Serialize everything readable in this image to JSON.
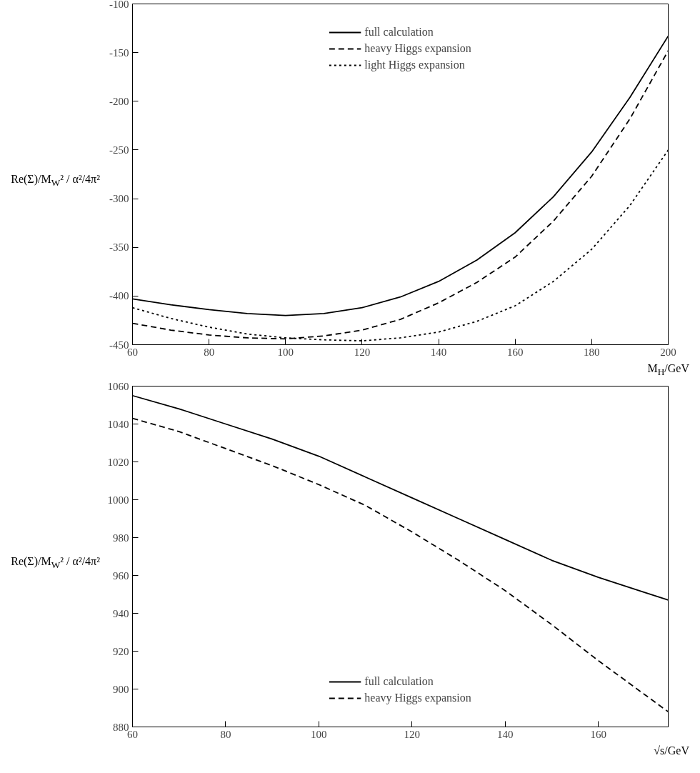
{
  "chart_data": [
    {
      "type": "line",
      "xlabel": "M$_{H}$/GeV",
      "ylabel": "Re(Σ)/M$_{W}$² / α²/4π²",
      "x": [
        60,
        70,
        80,
        90,
        100,
        110,
        120,
        130,
        140,
        150,
        160,
        170,
        180,
        190,
        200
      ],
      "xlim": [
        60,
        200
      ],
      "ylim": [
        -450,
        -100
      ],
      "xticks": [
        60,
        80,
        100,
        120,
        140,
        160,
        180,
        200
      ],
      "yticks": [
        -450,
        -400,
        -350,
        -300,
        -250,
        -200,
        -150,
        -100
      ],
      "grid": false,
      "legend": "top",
      "series": [
        {
          "name": "full calculation",
          "color": "#000000",
          "line_style": "solid",
          "values": [
            -403,
            -409,
            -414,
            -418,
            -420,
            -418,
            -412,
            -401,
            -385,
            -363,
            -335,
            -298,
            -252,
            -196,
            -133
          ]
        },
        {
          "name": "heavy Higgs expansion",
          "color": "#000000",
          "line_style": "dashed",
          "values": [
            -428,
            -435,
            -440,
            -443,
            -444,
            -441,
            -435,
            -424,
            -407,
            -386,
            -360,
            -323,
            -277,
            -218,
            -148
          ]
        },
        {
          "name": "light Higgs expansion",
          "color": "#000000",
          "line_style": "dotted",
          "values": [
            -412,
            -423,
            -432,
            -439,
            -443,
            -445,
            -446,
            -443,
            -437,
            -426,
            -410,
            -385,
            -352,
            -307,
            -250
          ]
        }
      ]
    },
    {
      "type": "line",
      "xlabel": "√s/GeV",
      "ylabel": "Re(Σ)/M$_{W}$² / α²/4π²",
      "x": [
        60,
        70,
        80,
        90,
        100,
        110,
        120,
        130,
        140,
        150,
        160,
        170,
        175
      ],
      "xlim": [
        60,
        175
      ],
      "ylim": [
        880,
        1060
      ],
      "xticks": [
        60,
        80,
        100,
        120,
        140,
        160
      ],
      "yticks": [
        880,
        900,
        920,
        940,
        960,
        980,
        1000,
        1020,
        1040,
        1060
      ],
      "grid": false,
      "legend": "bottom",
      "series": [
        {
          "name": "full calculation",
          "color": "#000000",
          "line_style": "solid",
          "values": [
            1055,
            1048,
            1040,
            1032,
            1023,
            1012,
            1001,
            990,
            979,
            968,
            959,
            951,
            947
          ]
        },
        {
          "name": "heavy Higgs expansion",
          "color": "#000000",
          "line_style": "dashed",
          "values": [
            1043,
            1036,
            1027,
            1018,
            1008,
            997,
            983,
            968,
            952,
            934,
            915,
            897,
            888
          ]
        }
      ]
    }
  ]
}
